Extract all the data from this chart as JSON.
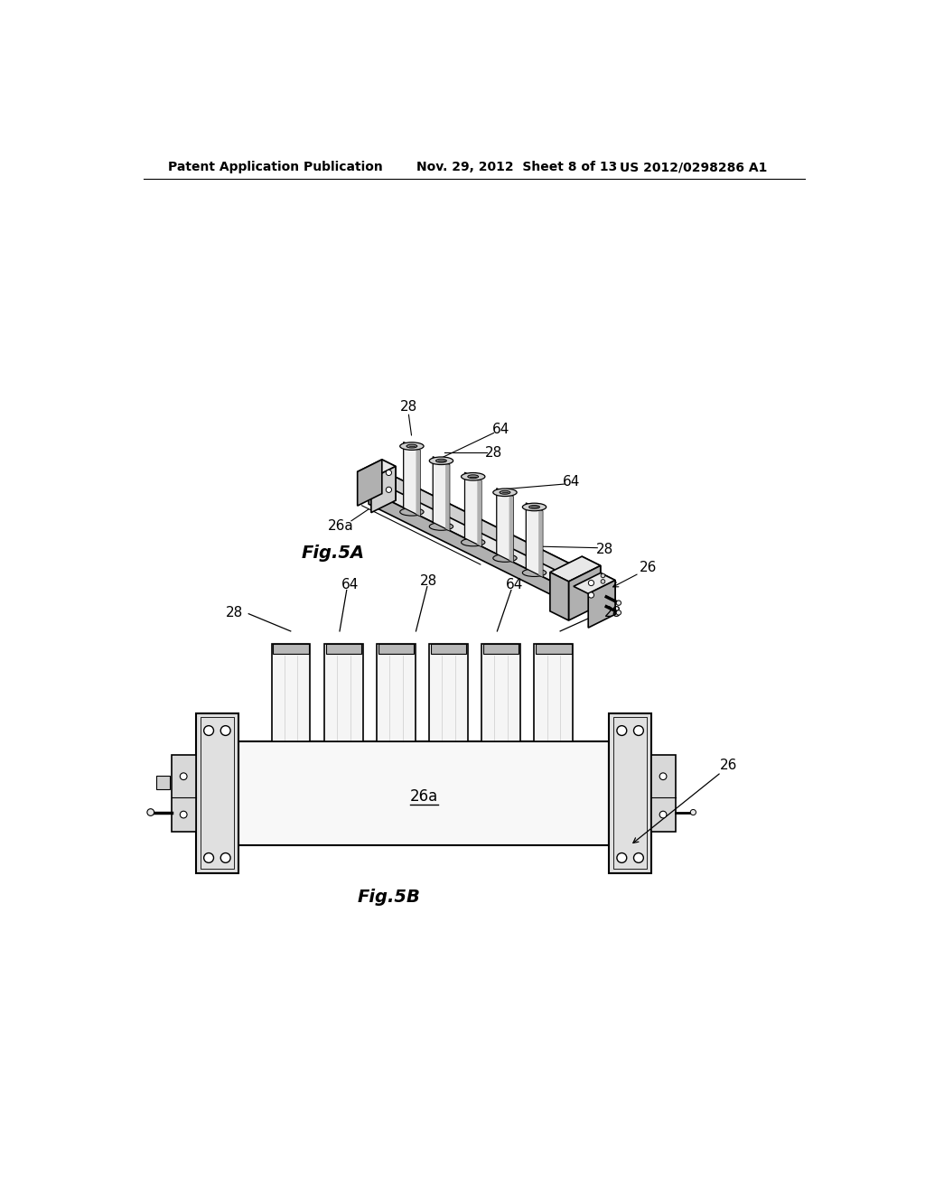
{
  "bg_color": "#ffffff",
  "header_left": "Patent Application Publication",
  "header_center": "Nov. 29, 2012  Sheet 8 of 13",
  "header_right": "US 2012/0298286 A1",
  "fig5a_label": "Fig.5A",
  "fig5b_label": "Fig.5B",
  "light_gray": "#e8e8e8",
  "mid_gray": "#d0d0d0",
  "dark_gray": "#b0b0b0",
  "darkest_gray": "#888888",
  "white": "#ffffff",
  "black": "#000000"
}
